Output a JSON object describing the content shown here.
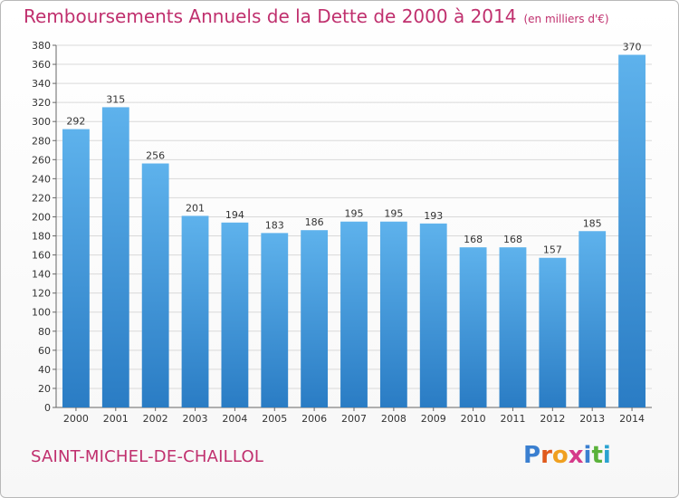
{
  "title": "Remboursements Annuels de la Dette de 2000 à 2014",
  "subtitle": "(en milliers d'€)",
  "commune": "SAINT-MICHEL-DE-CHAILLOL",
  "logo": [
    "P",
    "r",
    "o",
    "x",
    "i",
    "t",
    "i"
  ],
  "colors": {
    "bar_light": "#5eb2ec",
    "bar_dark": "#2a7cc4",
    "title": "#c0306e",
    "grid": "#d9d9d9"
  },
  "chart_data": {
    "type": "bar",
    "title": "Remboursements Annuels de la Dette de 2000 à 2014",
    "xlabel": "",
    "ylabel": "",
    "ylim": [
      0,
      380
    ],
    "ytick_step": 20,
    "categories": [
      "2000",
      "2001",
      "2002",
      "2003",
      "2004",
      "2005",
      "2006",
      "2007",
      "2008",
      "2009",
      "2010",
      "2011",
      "2012",
      "2013",
      "2014"
    ],
    "values": [
      292,
      315,
      256,
      201,
      194,
      183,
      186,
      195,
      195,
      193,
      168,
      168,
      157,
      185,
      370
    ]
  }
}
